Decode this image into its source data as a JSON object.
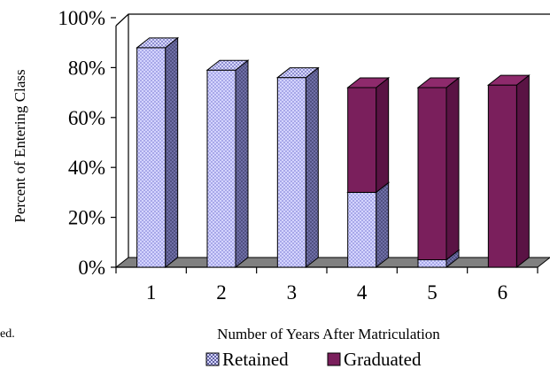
{
  "chart_data": {
    "type": "bar",
    "stacked": true,
    "three_d": true,
    "categories": [
      "1",
      "2",
      "3",
      "4",
      "5",
      "6"
    ],
    "series": [
      {
        "name": "Retained",
        "values": [
          88,
          79,
          76,
          30,
          3,
          0
        ],
        "color": "#CCCCFF",
        "pattern": "crosshatch"
      },
      {
        "name": "Graduated",
        "values": [
          0,
          0,
          0,
          42,
          69,
          73
        ],
        "color": "#7A1F5C"
      }
    ],
    "ylabel": "Percent of Entering Class",
    "xlabel": "Number of Years After Matriculation",
    "yticks": [
      "0%",
      "20%",
      "40%",
      "60%",
      "80%",
      "100%"
    ],
    "ylim": [
      0,
      100
    ],
    "grid": false,
    "legend_position": "bottom"
  },
  "clipped_text": "ed."
}
